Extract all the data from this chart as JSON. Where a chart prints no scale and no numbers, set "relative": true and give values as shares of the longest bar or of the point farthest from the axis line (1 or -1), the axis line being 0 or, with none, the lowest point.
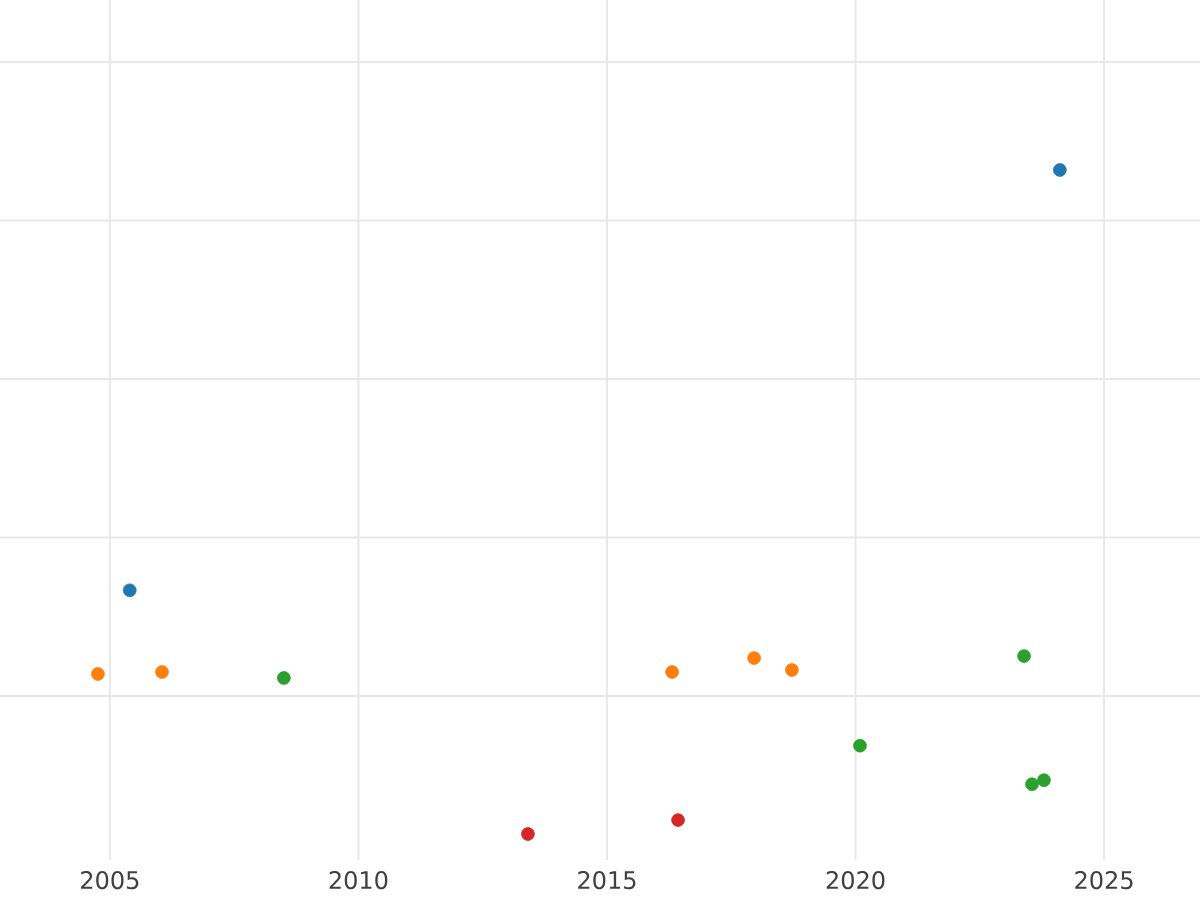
{
  "chart_data": {
    "type": "scatter",
    "relative": true,
    "grid": true,
    "marker": "circle",
    "xlim": [
      2002.79,
      2026.93
    ],
    "xticks": [
      2005,
      2010,
      2015,
      2020,
      2025
    ],
    "series": [
      {
        "color": "#1f77b4",
        "x": [
          2024.11,
          2005.4
        ],
        "values": [
          1,
          0.367
        ]
      },
      {
        "color": "#ff7f0e",
        "x": [
          2004.76,
          2006.05,
          2016.31,
          2017.96,
          2018.72
        ],
        "values": [
          0.241,
          0.244,
          0.244,
          0.265,
          0.247
        ]
      },
      {
        "color": "#2ca02c",
        "x": [
          2008.5,
          2020.09,
          2023.39,
          2023.55,
          2023.79
        ],
        "values": [
          0.235,
          0.133,
          0.268,
          0.075,
          0.081
        ]
      },
      {
        "color": "#d62728",
        "x": [
          2013.41,
          2016.43
        ],
        "values": [
          0,
          0.021
        ]
      }
    ]
  }
}
